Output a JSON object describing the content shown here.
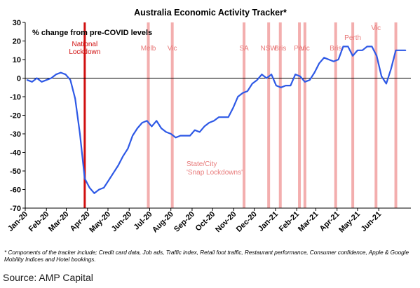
{
  "chart_data": {
    "type": "line",
    "title": "Australia Economic Activity Tracker*",
    "ylabel": "% change from pre-COVID levels",
    "ylim": [
      -70,
      30
    ],
    "yticks": [
      30,
      20,
      10,
      0,
      -10,
      -20,
      -30,
      -40,
      -50,
      -60,
      -70
    ],
    "grid": false,
    "x_range": [
      "2020-01-01",
      "2021-07-18"
    ],
    "xtick_labels": [
      "Jan-20",
      "Feb-20",
      "Mar-20",
      "Apr-20",
      "May-20",
      "Jun-20",
      "Jul-20",
      "Aug-20",
      "Sep-20",
      "Oct-20",
      "Nov-20",
      "Dec-20",
      "Jan-21",
      "Feb-21",
      "Mar-21",
      "Apr-21",
      "May-21",
      "Jun-21"
    ],
    "series": [
      {
        "color": "#2e59e6",
        "x": [
          "2020-01-04",
          "2020-01-11",
          "2020-01-18",
          "2020-01-25",
          "2020-02-01",
          "2020-02-08",
          "2020-02-15",
          "2020-02-22",
          "2020-02-29",
          "2020-03-07",
          "2020-03-14",
          "2020-03-21",
          "2020-03-28",
          "2020-04-04",
          "2020-04-11",
          "2020-04-18",
          "2020-04-25",
          "2020-05-02",
          "2020-05-09",
          "2020-05-16",
          "2020-05-23",
          "2020-05-30",
          "2020-06-06",
          "2020-06-13",
          "2020-06-20",
          "2020-06-27",
          "2020-07-04",
          "2020-07-11",
          "2020-07-18",
          "2020-07-25",
          "2020-08-01",
          "2020-08-08",
          "2020-08-15",
          "2020-08-22",
          "2020-08-29",
          "2020-09-05",
          "2020-09-12",
          "2020-09-19",
          "2020-09-26",
          "2020-10-03",
          "2020-10-10",
          "2020-10-17",
          "2020-10-24",
          "2020-10-31",
          "2020-11-07",
          "2020-11-14",
          "2020-11-21",
          "2020-11-28",
          "2020-12-05",
          "2020-12-12",
          "2020-12-19",
          "2020-12-26",
          "2021-01-02",
          "2021-01-09",
          "2021-01-16",
          "2021-01-23",
          "2021-01-30",
          "2021-02-06",
          "2021-02-13",
          "2021-02-20",
          "2021-02-27",
          "2021-03-06",
          "2021-03-13",
          "2021-03-20",
          "2021-03-27",
          "2021-04-03",
          "2021-04-10",
          "2021-04-17",
          "2021-04-24",
          "2021-05-01",
          "2021-05-08",
          "2021-05-15",
          "2021-05-22",
          "2021-05-29",
          "2021-06-05",
          "2021-06-12",
          "2021-06-19",
          "2021-06-26",
          "2021-07-03",
          "2021-07-10"
        ],
        "y": [
          -1,
          -2,
          0,
          -2,
          -1,
          0,
          2,
          3,
          2,
          -1,
          -11,
          -30,
          -54,
          -59,
          -62,
          -60,
          -59,
          -55,
          -51,
          -47,
          -42,
          -38,
          -31,
          -27,
          -24,
          -23,
          -26,
          -23,
          -27,
          -29,
          -30,
          -32,
          -31,
          -31,
          -31,
          -28,
          -29,
          -26,
          -24,
          -23,
          -21,
          -21,
          -21,
          -16,
          -10,
          -8,
          -7,
          -3,
          -1,
          2,
          0,
          2,
          -4,
          -5,
          -4,
          -4,
          2,
          1,
          -2,
          -1,
          3,
          8,
          11,
          10,
          9,
          10,
          17,
          17,
          12,
          15,
          15,
          17,
          17,
          12,
          1,
          -3,
          5,
          15,
          15,
          15
        ]
      }
    ],
    "lockdowns": [
      {
        "date": "2020-03-28",
        "label": "National Lockdown",
        "color": "#d01010"
      },
      {
        "date": "2020-06-29",
        "label": "Melb",
        "color": "#f2a0a0"
      },
      {
        "date": "2020-08-03",
        "label": "Vic",
        "color": "#f2a0a0"
      },
      {
        "date": "2020-11-16",
        "label": "SA",
        "color": "#f2a0a0"
      },
      {
        "date": "2020-12-22",
        "label": "NSW",
        "color": "#f2a0a0"
      },
      {
        "date": "2021-01-08",
        "label": "Bris",
        "color": "#f2a0a0"
      },
      {
        "date": "2021-02-05",
        "label": "Per",
        "color": "#f2a0a0"
      },
      {
        "date": "2021-02-13",
        "label": "Vic",
        "color": "#f2a0a0"
      },
      {
        "date": "2021-03-30",
        "label": "Bris",
        "color": "#f2a0a0"
      },
      {
        "date": "2021-04-24",
        "label": "Perth",
        "color": "#f2a0a0"
      },
      {
        "date": "2021-05-28",
        "label": "Vic",
        "color": "#f2a0a0"
      },
      {
        "date": "2021-06-26",
        "label": "",
        "color": "#f2a0a0"
      }
    ],
    "annotations": [
      "State/City 'Snap Lockdowns'"
    ]
  },
  "footnote": "* Components of the tracker include; Credit card data, Job ads, Traffic index, Retail foot traffic, Restaurant performance, Consumer confidence, Apple & Google Mobility Indices and Hotel bookings.",
  "source": "Source: AMP Capital"
}
